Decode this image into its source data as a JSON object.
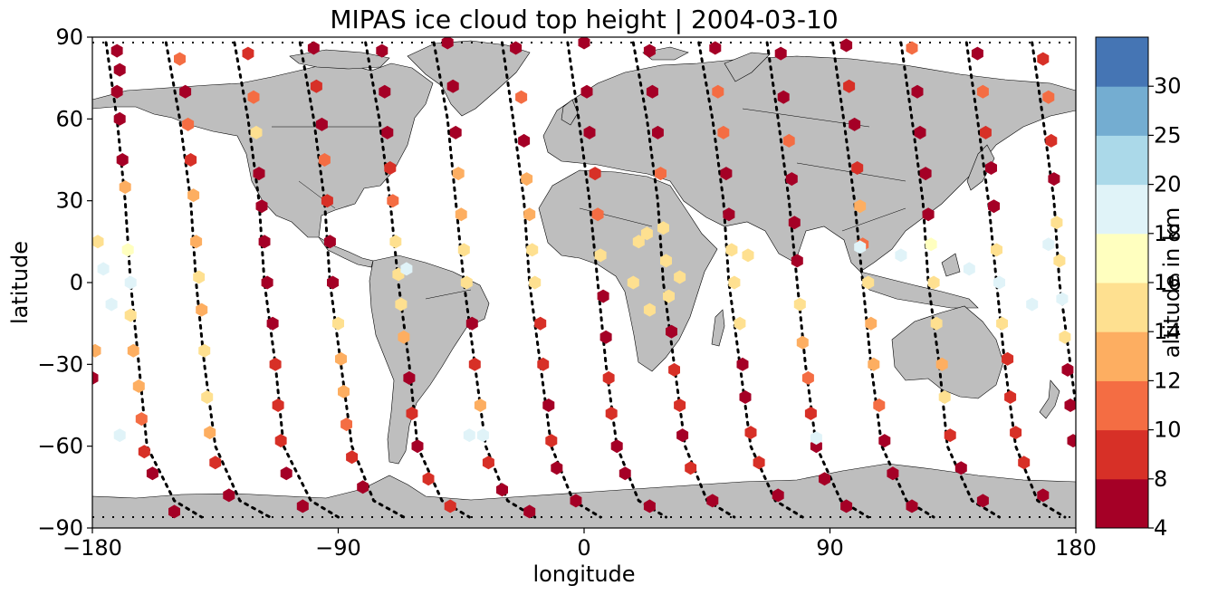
{
  "title": "MIPAS ice cloud top height | 2004-03-10",
  "xlabel": "longitude",
  "ylabel": "latitude",
  "colorbar_label": "altitude in km",
  "chart_data": {
    "type": "scatter",
    "projection": "plate-carree",
    "xlim": [
      -180,
      180
    ],
    "ylim": [
      -90,
      90
    ],
    "x_ticks": [
      -180,
      -90,
      0,
      90,
      180
    ],
    "x_tick_labels": [
      "−180",
      "−90",
      "0",
      "90",
      "180"
    ],
    "y_ticks": [
      -90,
      -60,
      -30,
      0,
      30,
      60,
      90
    ],
    "y_tick_labels": [
      "−90",
      "−60",
      "−30",
      "0",
      "30",
      "60",
      "90"
    ],
    "grid": false,
    "land_color": "#bebebe",
    "marker": "hexagon",
    "colorbar": {
      "bounds": [
        4,
        8,
        10,
        12,
        14,
        16,
        18,
        20,
        25,
        30
      ],
      "tick_labels": [
        "4",
        "8",
        "10",
        "12",
        "14",
        "16",
        "18",
        "20",
        "25",
        "30"
      ],
      "colors": [
        "#a50026",
        "#d73027",
        "#f46d43",
        "#fdae61",
        "#fee090",
        "#ffffbf",
        "#e0f3f8",
        "#abd9e9",
        "#74add1",
        "#4575b4"
      ]
    },
    "orbits": [
      [
        [
          -175,
          88
        ],
        [
          -171,
          60
        ],
        [
          -168,
          30
        ],
        [
          -166,
          0
        ],
        [
          -163,
          -30
        ],
        [
          -160,
          -60
        ],
        [
          -150,
          -80
        ],
        [
          -140,
          -86
        ]
      ],
      [
        [
          -153,
          88
        ],
        [
          -148,
          60
        ],
        [
          -144,
          30
        ],
        [
          -142,
          0
        ],
        [
          -139,
          -30
        ],
        [
          -135,
          -60
        ],
        [
          -126,
          -80
        ],
        [
          -115,
          -86
        ]
      ],
      [
        [
          -128,
          88
        ],
        [
          -123,
          60
        ],
        [
          -119,
          30
        ],
        [
          -117,
          0
        ],
        [
          -113,
          -30
        ],
        [
          -110,
          -60
        ],
        [
          -100,
          -80
        ],
        [
          -90,
          -86
        ]
      ],
      [
        [
          -104,
          88
        ],
        [
          -99,
          60
        ],
        [
          -95,
          30
        ],
        [
          -93,
          0
        ],
        [
          -89,
          -30
        ],
        [
          -85,
          -60
        ],
        [
          -77,
          -80
        ],
        [
          -66,
          -86
        ]
      ],
      [
        [
          -80,
          88
        ],
        [
          -75,
          60
        ],
        [
          -71,
          30
        ],
        [
          -68,
          0
        ],
        [
          -64,
          -30
        ],
        [
          -61,
          -60
        ],
        [
          -52,
          -80
        ],
        [
          -42,
          -86
        ]
      ],
      [
        [
          -55,
          88
        ],
        [
          -50,
          60
        ],
        [
          -47,
          30
        ],
        [
          -44,
          0
        ],
        [
          -40,
          -30
        ],
        [
          -36,
          -60
        ],
        [
          -28,
          -80
        ],
        [
          -18,
          -86
        ]
      ],
      [
        [
          -30,
          88
        ],
        [
          -26,
          60
        ],
        [
          -22,
          30
        ],
        [
          -20,
          0
        ],
        [
          -16,
          -30
        ],
        [
          -12,
          -60
        ],
        [
          -4,
          -80
        ],
        [
          6,
          -86
        ]
      ],
      [
        [
          -6,
          88
        ],
        [
          -2,
          60
        ],
        [
          2,
          30
        ],
        [
          5,
          0
        ],
        [
          8,
          -30
        ],
        [
          12,
          -60
        ],
        [
          20,
          -80
        ],
        [
          30,
          -86
        ]
      ],
      [
        [
          18,
          88
        ],
        [
          23,
          60
        ],
        [
          27,
          30
        ],
        [
          29,
          0
        ],
        [
          33,
          -30
        ],
        [
          37,
          -60
        ],
        [
          45,
          -80
        ],
        [
          55,
          -86
        ]
      ],
      [
        [
          42,
          88
        ],
        [
          47,
          60
        ],
        [
          51,
          30
        ],
        [
          53,
          0
        ],
        [
          57,
          -30
        ],
        [
          61,
          -60
        ],
        [
          70,
          -80
        ],
        [
          80,
          -86
        ]
      ],
      [
        [
          67,
          88
        ],
        [
          71,
          60
        ],
        [
          75,
          30
        ],
        [
          78,
          0
        ],
        [
          81,
          -30
        ],
        [
          85,
          -60
        ],
        [
          94,
          -80
        ],
        [
          104,
          -86
        ]
      ],
      [
        [
          91,
          88
        ],
        [
          95,
          60
        ],
        [
          99,
          30
        ],
        [
          102,
          0
        ],
        [
          105,
          -30
        ],
        [
          109,
          -60
        ],
        [
          118,
          -80
        ],
        [
          128,
          -86
        ]
      ],
      [
        [
          116,
          88
        ],
        [
          120,
          60
        ],
        [
          124,
          30
        ],
        [
          126,
          0
        ],
        [
          130,
          -30
        ],
        [
          133,
          -60
        ],
        [
          142,
          -80
        ],
        [
          152,
          -86
        ]
      ],
      [
        [
          140,
          88
        ],
        [
          144,
          60
        ],
        [
          148,
          30
        ],
        [
          151,
          0
        ],
        [
          154,
          -30
        ],
        [
          158,
          -60
        ],
        [
          166,
          -80
        ],
        [
          176,
          -86
        ]
      ],
      [
        [
          164,
          88
        ],
        [
          168,
          60
        ],
        [
          172,
          30
        ],
        [
          174,
          0
        ],
        [
          178,
          -30
        ],
        [
          180,
          -45
        ]
      ]
    ],
    "points": [
      [
        -171,
        85,
        6
      ],
      [
        -170,
        78,
        6
      ],
      [
        -171,
        70,
        5
      ],
      [
        -170,
        60,
        6
      ],
      [
        -169,
        45,
        6
      ],
      [
        -168,
        35,
        12
      ],
      [
        -167,
        12,
        16
      ],
      [
        -166,
        0,
        18
      ],
      [
        -166,
        -12,
        14
      ],
      [
        -165,
        -25,
        13
      ],
      [
        -163,
        -38,
        12
      ],
      [
        -162,
        -50,
        10
      ],
      [
        -161,
        -62,
        8
      ],
      [
        -158,
        -70,
        6
      ],
      [
        -150,
        -84,
        6
      ],
      [
        -148,
        82,
        10
      ],
      [
        -146,
        70,
        6
      ],
      [
        -145,
        58,
        10
      ],
      [
        -144,
        45,
        9
      ],
      [
        -143,
        32,
        12
      ],
      [
        -142,
        15,
        13
      ],
      [
        -141,
        2,
        14
      ],
      [
        -140,
        -10,
        13
      ],
      [
        -139,
        -25,
        14
      ],
      [
        -138,
        -42,
        14
      ],
      [
        -137,
        -55,
        12
      ],
      [
        -135,
        -66,
        8
      ],
      [
        -130,
        -78,
        6
      ],
      [
        -123,
        84,
        9
      ],
      [
        -121,
        68,
        10
      ],
      [
        -120,
        55,
        14
      ],
      [
        -119,
        40,
        6
      ],
      [
        -118,
        28,
        6
      ],
      [
        -117,
        15,
        6
      ],
      [
        -116,
        0,
        6
      ],
      [
        -114,
        -15,
        6
      ],
      [
        -113,
        -30,
        8
      ],
      [
        -112,
        -45,
        9
      ],
      [
        -111,
        -58,
        8
      ],
      [
        -109,
        -70,
        6
      ],
      [
        -103,
        -82,
        6
      ],
      [
        -99,
        86,
        6
      ],
      [
        -98,
        72,
        8
      ],
      [
        -96,
        58,
        6
      ],
      [
        -95,
        45,
        10
      ],
      [
        -94,
        30,
        9
      ],
      [
        -93,
        15,
        6
      ],
      [
        -92,
        0,
        6
      ],
      [
        -90,
        -15,
        14
      ],
      [
        -89,
        -28,
        13
      ],
      [
        -88,
        -40,
        13
      ],
      [
        -87,
        -52,
        10
      ],
      [
        -85,
        -64,
        9
      ],
      [
        -81,
        -75,
        6
      ],
      [
        -74,
        85,
        6
      ],
      [
        -73,
        70,
        6
      ],
      [
        -72,
        55,
        6
      ],
      [
        -71,
        42,
        8
      ],
      [
        -70,
        30,
        10
      ],
      [
        -69,
        15,
        14
      ],
      [
        -68,
        3,
        15
      ],
      [
        -67,
        -8,
        15
      ],
      [
        -66,
        -20,
        13
      ],
      [
        -64,
        -35,
        6
      ],
      [
        -63,
        -48,
        8
      ],
      [
        -61,
        -60,
        6
      ],
      [
        -57,
        -72,
        9
      ],
      [
        -49,
        -82,
        9
      ],
      [
        -50,
        88,
        6
      ],
      [
        -48,
        72,
        6
      ],
      [
        -47,
        55,
        6
      ],
      [
        -46,
        40,
        13
      ],
      [
        -45,
        25,
        13
      ],
      [
        -44,
        12,
        15
      ],
      [
        -43,
        0,
        15
      ],
      [
        -41,
        -15,
        6
      ],
      [
        -40,
        -30,
        9
      ],
      [
        -38,
        -45,
        12
      ],
      [
        -37,
        -56,
        18
      ],
      [
        -35,
        -66,
        8
      ],
      [
        -30,
        -76,
        6
      ],
      [
        -20,
        -84,
        6
      ],
      [
        -25,
        86,
        6
      ],
      [
        -23,
        68,
        10
      ],
      [
        -22,
        52,
        6
      ],
      [
        -21,
        38,
        13
      ],
      [
        -20,
        25,
        13
      ],
      [
        -19,
        12,
        14
      ],
      [
        -18,
        0,
        15
      ],
      [
        -16,
        -15,
        8
      ],
      [
        -15,
        -30,
        9
      ],
      [
        -13,
        -45,
        6
      ],
      [
        -12,
        -58,
        8
      ],
      [
        -10,
        -68,
        6
      ],
      [
        -3,
        -80,
        6
      ],
      [
        0,
        88,
        6
      ],
      [
        1,
        70,
        6
      ],
      [
        2,
        55,
        6
      ],
      [
        4,
        40,
        9
      ],
      [
        5,
        25,
        10
      ],
      [
        6,
        10,
        14
      ],
      [
        7,
        -5,
        6
      ],
      [
        8,
        -20,
        6
      ],
      [
        9,
        -35,
        8
      ],
      [
        10,
        -48,
        9
      ],
      [
        12,
        -60,
        6
      ],
      [
        15,
        -70,
        6
      ],
      [
        24,
        -82,
        6
      ],
      [
        24,
        85,
        6
      ],
      [
        25,
        70,
        6
      ],
      [
        27,
        55,
        6
      ],
      [
        28,
        40,
        10
      ],
      [
        29,
        20,
        15
      ],
      [
        30,
        8,
        15
      ],
      [
        31,
        -5,
        15
      ],
      [
        32,
        -18,
        6
      ],
      [
        33,
        -32,
        8
      ],
      [
        35,
        -45,
        9
      ],
      [
        36,
        -56,
        6
      ],
      [
        39,
        -68,
        9
      ],
      [
        47,
        -80,
        6
      ],
      [
        48,
        86,
        6
      ],
      [
        49,
        70,
        10
      ],
      [
        51,
        55,
        10
      ],
      [
        52,
        40,
        6
      ],
      [
        53,
        25,
        6
      ],
      [
        54,
        12,
        15
      ],
      [
        55,
        0,
        15
      ],
      [
        57,
        -15,
        15
      ],
      [
        58,
        -30,
        6
      ],
      [
        59,
        -42,
        6
      ],
      [
        61,
        -55,
        9
      ],
      [
        64,
        -66,
        9
      ],
      [
        71,
        -78,
        6
      ],
      [
        72,
        84,
        6
      ],
      [
        73,
        68,
        6
      ],
      [
        75,
        52,
        10
      ],
      [
        76,
        38,
        6
      ],
      [
        77,
        22,
        6
      ],
      [
        78,
        8,
        6
      ],
      [
        79,
        -8,
        15
      ],
      [
        80,
        -22,
        13
      ],
      [
        82,
        -35,
        10
      ],
      [
        83,
        -48,
        8
      ],
      [
        85,
        -60,
        6
      ],
      [
        88,
        -72,
        6
      ],
      [
        96,
        -82,
        6
      ],
      [
        96,
        87,
        6
      ],
      [
        97,
        72,
        8
      ],
      [
        99,
        58,
        6
      ],
      [
        100,
        42,
        9
      ],
      [
        101,
        28,
        13
      ],
      [
        102,
        14,
        10
      ],
      [
        104,
        0,
        14
      ],
      [
        105,
        -15,
        13
      ],
      [
        106,
        -30,
        13
      ],
      [
        108,
        -45,
        10
      ],
      [
        110,
        -58,
        6
      ],
      [
        113,
        -70,
        6
      ],
      [
        120,
        -82,
        6
      ],
      [
        120,
        86,
        10
      ],
      [
        122,
        70,
        6
      ],
      [
        123,
        55,
        6
      ],
      [
        125,
        40,
        6
      ],
      [
        126,
        25,
        6
      ],
      [
        127,
        14,
        17
      ],
      [
        128,
        0,
        15
      ],
      [
        129,
        -15,
        15
      ],
      [
        131,
        -30,
        13
      ],
      [
        132,
        -42,
        14
      ],
      [
        134,
        -56,
        9
      ],
      [
        138,
        -68,
        6
      ],
      [
        146,
        -80,
        6
      ],
      [
        144,
        84,
        6
      ],
      [
        146,
        70,
        10
      ],
      [
        147,
        55,
        9
      ],
      [
        149,
        42,
        6
      ],
      [
        150,
        28,
        6
      ],
      [
        151,
        12,
        15
      ],
      [
        152,
        0,
        18
      ],
      [
        153,
        -15,
        15
      ],
      [
        155,
        -28,
        8
      ],
      [
        156,
        -42,
        8
      ],
      [
        158,
        -55,
        9
      ],
      [
        161,
        -66,
        9
      ],
      [
        168,
        -78,
        6
      ],
      [
        168,
        82,
        9
      ],
      [
        170,
        68,
        10
      ],
      [
        171,
        52,
        9
      ],
      [
        172,
        38,
        6
      ],
      [
        173,
        22,
        15
      ],
      [
        174,
        8,
        15
      ],
      [
        175,
        -6,
        18
      ],
      [
        176,
        -20,
        15
      ],
      [
        177,
        -32,
        6
      ],
      [
        178,
        -45,
        6
      ],
      [
        179,
        -58,
        6
      ],
      [
        -176,
        5,
        18
      ],
      [
        -173,
        -8,
        18
      ],
      [
        -170,
        -56,
        18
      ],
      [
        -65,
        5,
        18
      ],
      [
        -42,
        -56,
        18
      ],
      [
        101,
        13,
        18
      ],
      [
        116,
        10,
        19
      ],
      [
        141,
        5,
        18
      ],
      [
        170,
        14,
        19
      ],
      [
        164,
        -8,
        19
      ],
      [
        85,
        -57,
        18
      ],
      [
        20,
        15,
        15
      ],
      [
        18,
        0,
        15
      ],
      [
        24,
        -10,
        15
      ],
      [
        23,
        18,
        15
      ],
      [
        35,
        2,
        15
      ],
      [
        60,
        10,
        15
      ],
      [
        -180,
        -35,
        6
      ],
      [
        -179,
        -25,
        13
      ],
      [
        -178,
        15,
        15
      ]
    ]
  }
}
